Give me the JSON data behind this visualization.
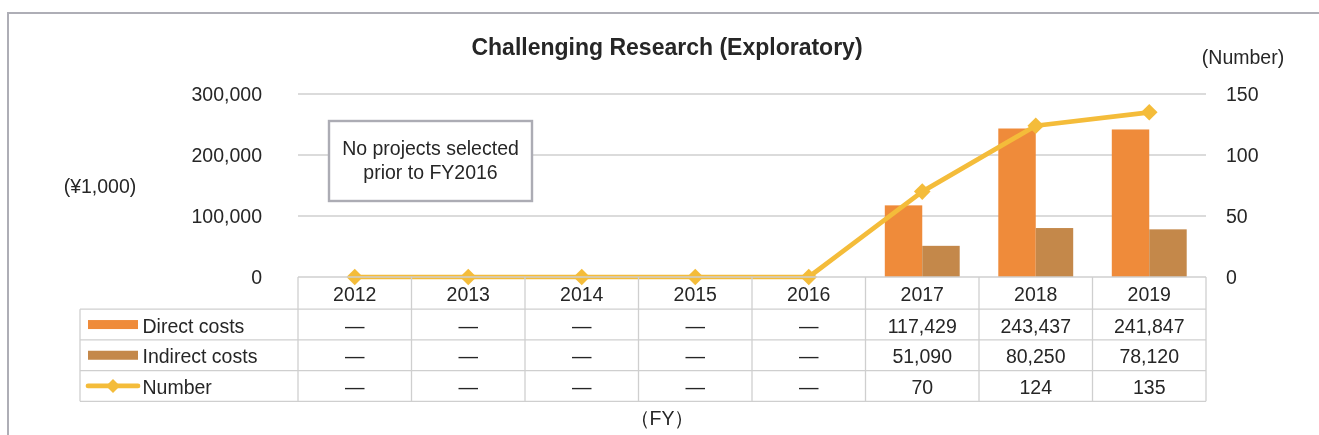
{
  "chart_data": {
    "type": "bar",
    "title": "Challenging Research (Exploratory)",
    "ylabel": "(¥1,000)",
    "y2label": "(Number)",
    "categories": [
      "2012",
      "2013",
      "2014",
      "2015",
      "2016",
      "2017",
      "2018",
      "2019"
    ],
    "series": [
      {
        "name": "Direct costs",
        "color": "#ef8b3a",
        "values": [
          null,
          null,
          null,
          null,
          null,
          117429,
          243437,
          241847
        ],
        "value_labels": [
          "—",
          "—",
          "—",
          "—",
          "—",
          "117,429",
          "243,437",
          "241,847"
        ]
      },
      {
        "name": "Indirect costs",
        "color": "#c4884a",
        "values": [
          null,
          null,
          null,
          null,
          null,
          51090,
          80250,
          78120
        ],
        "value_labels": [
          "—",
          "—",
          "—",
          "—",
          "—",
          "51,090",
          "80,250",
          "78,120"
        ]
      },
      {
        "name": "Number",
        "type": "line",
        "axis": "y2",
        "color": "#f4bc3a",
        "marker": "diamond",
        "line_style": "solid",
        "values": [
          0,
          0,
          0,
          0,
          0,
          70,
          124,
          135
        ],
        "value_labels": [
          "—",
          "—",
          "—",
          "—",
          "—",
          "70",
          "124",
          "135"
        ]
      }
    ],
    "ylim": [
      0,
      300000
    ],
    "yticks": [
      0,
      {
        "value": 100000,
        "label": "100,000"
      },
      {
        "value": 200000,
        "label": "200,000"
      },
      {
        "value": 300000,
        "label": "300,000"
      }
    ],
    "y2lim": [
      0,
      150
    ],
    "y2ticks": [
      0,
      50,
      100,
      150
    ],
    "grid": "y",
    "legend": "bottom",
    "annotations": [
      "No projects selected\nprior to FY2016",
      "（FY）"
    ]
  }
}
